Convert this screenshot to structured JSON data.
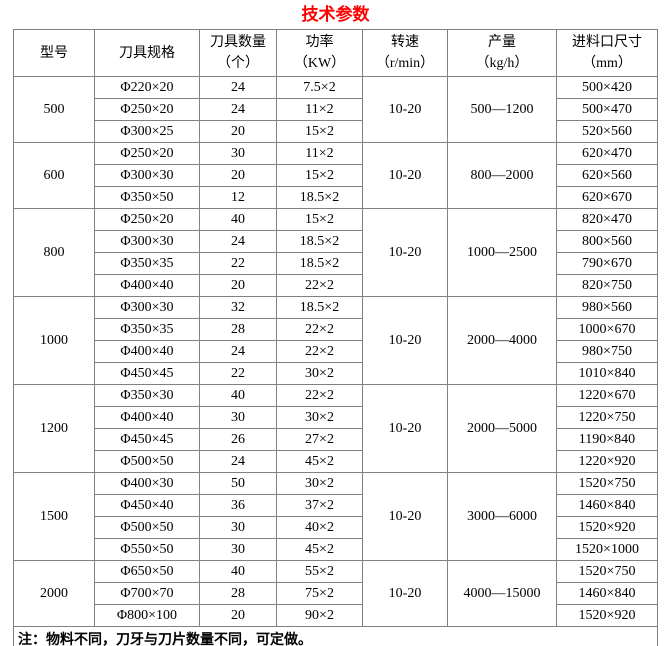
{
  "title": "技术参数",
  "colors": {
    "title": "#ff0000",
    "border": "#808080",
    "text": "#000000",
    "background": "#ffffff"
  },
  "table": {
    "headers": [
      {
        "label": "型号",
        "unit": ""
      },
      {
        "label": "刀具规格",
        "unit": ""
      },
      {
        "label": "刀具数量",
        "unit": "（个）"
      },
      {
        "label": "功率",
        "unit": "（KW）"
      },
      {
        "label": "转速",
        "unit": "（r/min）"
      },
      {
        "label": "产量",
        "unit": "（kg/h）"
      },
      {
        "label": "进料口尺寸",
        "unit": "（mm）"
      }
    ],
    "groups": [
      {
        "model": "500",
        "speed": "10-20",
        "output": "500—1200",
        "rows": [
          {
            "spec": "Φ220×20",
            "qty": "24",
            "power": "7.5×2",
            "inlet": "500×420"
          },
          {
            "spec": "Φ250×20",
            "qty": "24",
            "power": "11×2",
            "inlet": "500×470"
          },
          {
            "spec": "Φ300×25",
            "qty": "20",
            "power": "15×2",
            "inlet": "520×560"
          }
        ]
      },
      {
        "model": "600",
        "speed": "10-20",
        "output": "800—2000",
        "rows": [
          {
            "spec": "Φ250×20",
            "qty": "30",
            "power": "11×2",
            "inlet": "620×470"
          },
          {
            "spec": "Φ300×30",
            "qty": "20",
            "power": "15×2",
            "inlet": "620×560"
          },
          {
            "spec": "Φ350×50",
            "qty": "12",
            "power": "18.5×2",
            "inlet": "620×670"
          }
        ]
      },
      {
        "model": "800",
        "speed": "10-20",
        "output": "1000—2500",
        "rows": [
          {
            "spec": "Φ250×20",
            "qty": "40",
            "power": "15×2",
            "inlet": "820×470"
          },
          {
            "spec": "Φ300×30",
            "qty": "24",
            "power": "18.5×2",
            "inlet": "800×560"
          },
          {
            "spec": "Φ350×35",
            "qty": "22",
            "power": "18.5×2",
            "inlet": "790×670"
          },
          {
            "spec": "Φ400×40",
            "qty": "20",
            "power": "22×2",
            "inlet": "820×750"
          }
        ]
      },
      {
        "model": "1000",
        "speed": "10-20",
        "output": "2000—4000",
        "rows": [
          {
            "spec": "Φ300×30",
            "qty": "32",
            "power": "18.5×2",
            "inlet": "980×560"
          },
          {
            "spec": "Φ350×35",
            "qty": "28",
            "power": "22×2",
            "inlet": "1000×670"
          },
          {
            "spec": "Φ400×40",
            "qty": "24",
            "power": "22×2",
            "inlet": "980×750"
          },
          {
            "spec": "Φ450×45",
            "qty": "22",
            "power": "30×2",
            "inlet": "1010×840"
          }
        ]
      },
      {
        "model": "1200",
        "speed": "10-20",
        "output": "2000—5000",
        "rows": [
          {
            "spec": "Φ350×30",
            "qty": "40",
            "power": "22×2",
            "inlet": "1220×670"
          },
          {
            "spec": "Φ400×40",
            "qty": "30",
            "power": "30×2",
            "inlet": "1220×750"
          },
          {
            "spec": "Φ450×45",
            "qty": "26",
            "power": "27×2",
            "inlet": "1190×840"
          },
          {
            "spec": "Φ500×50",
            "qty": "24",
            "power": "45×2",
            "inlet": "1220×920"
          }
        ]
      },
      {
        "model": "1500",
        "speed": "10-20",
        "output": "3000—6000",
        "rows": [
          {
            "spec": "Φ400×30",
            "qty": "50",
            "power": "30×2",
            "inlet": "1520×750"
          },
          {
            "spec": "Φ450×40",
            "qty": "36",
            "power": "37×2",
            "inlet": "1460×840"
          },
          {
            "spec": "Φ500×50",
            "qty": "30",
            "power": "40×2",
            "inlet": "1520×920"
          },
          {
            "spec": "Φ550×50",
            "qty": "30",
            "power": "45×2",
            "inlet": "1520×1000"
          }
        ]
      },
      {
        "model": "2000",
        "speed": "10-20",
        "output": "4000—15000",
        "rows": [
          {
            "spec": "Φ650×50",
            "qty": "40",
            "power": "55×2",
            "inlet": "1520×750"
          },
          {
            "spec": "Φ700×70",
            "qty": "28",
            "power": "75×2",
            "inlet": "1460×840"
          },
          {
            "spec": "Φ800×100",
            "qty": "20",
            "power": "90×2",
            "inlet": "1520×920"
          }
        ]
      }
    ],
    "note": "注：物料不同，刀牙与刀片数量不同，可定做。"
  }
}
